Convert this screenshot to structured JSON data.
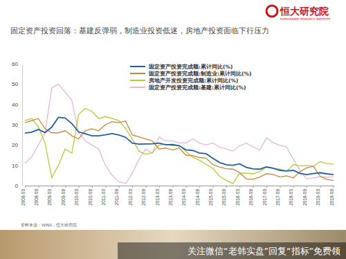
{
  "chart_data": {
    "type": "line",
    "title": "固定资产投资回落：基建反弹弱，制造业投资低迷，房地产投资面临下行压力",
    "brand": "恒大研究院",
    "brand_sub": "EVERGRANDE RESEARCH INSTITUTE",
    "source": "资料来源：WIND，恒大研究院",
    "watermark": "关注微信“老韩实盘”回复“指标”免费领",
    "categories": [
      "2008-03",
      null,
      "2008-09",
      null,
      "2009-03",
      null,
      "2009-09",
      null,
      "2010-03",
      null,
      "2010-09",
      null,
      "2011-03",
      null,
      "2011-09",
      null,
      "2012-03",
      null,
      "2012-09",
      null,
      "2013-03",
      null,
      "2013-09",
      null,
      "2014-03",
      null,
      "2014-09",
      null,
      "2015-03",
      null,
      "2015-09",
      null,
      "2016-03",
      null,
      "2016-09",
      null,
      "2017-03",
      null,
      "2017-09",
      null,
      "2018-03",
      null,
      "2018-09",
      null,
      "2019-03",
      null,
      "2019-09"
    ],
    "series": [
      {
        "name": "固定资产投资完成额:累计同比(%)",
        "color": "#1f5fa6",
        "values": [
          25.9,
          26.3,
          27.6,
          26.1,
          28.8,
          33.6,
          33.3,
          30.5,
          26.4,
          25.5,
          24.5,
          24.5,
          25.0,
          25.6,
          24.9,
          23.8,
          20.9,
          20.4,
          20.5,
          20.6,
          20.9,
          20.1,
          20.2,
          19.6,
          17.6,
          17.3,
          16.1,
          15.7,
          13.5,
          11.4,
          10.3,
          10.0,
          10.7,
          9.0,
          8.2,
          8.1,
          9.2,
          8.6,
          7.5,
          7.2,
          7.5,
          6.0,
          5.4,
          5.9,
          6.3,
          5.8,
          5.4
        ]
      },
      {
        "name": "固定资产投资完成额:制造业:累计同比(%)",
        "color": "#c8863a",
        "values": [
          31,
          32,
          33,
          28,
          26,
          26,
          27,
          24.5,
          23,
          27,
          28,
          27,
          30,
          31.5,
          31,
          31.8,
          25,
          24,
          23,
          22,
          18,
          18.5,
          17.5,
          18.5,
          15,
          14.8,
          13.8,
          13.5,
          10.4,
          9.2,
          8.3,
          8.1,
          6.4,
          3.3,
          3.1,
          4.2,
          5.8,
          5.5,
          4.2,
          4.8,
          3.8,
          6.8,
          8.7,
          9.5,
          4.6,
          3.0,
          2.5
        ]
      },
      {
        "name": "房地产开发投资完成额:累计同比(%)",
        "color": "#b5c934",
        "values": [
          32,
          33,
          29,
          21,
          4,
          10,
          18,
          16,
          35,
          38,
          36.5,
          33,
          34,
          33,
          32,
          28,
          23,
          17,
          15.4,
          16.2,
          20,
          20.3,
          19.7,
          19.8,
          16.8,
          14,
          12.5,
          10.5,
          8.5,
          4.6,
          2.6,
          1.0,
          6.2,
          6.1,
          5.8,
          6.9,
          9.1,
          8.5,
          8.1,
          7.0,
          10.4,
          9.7,
          9.9,
          9.5,
          11.8,
          10.9,
          10.5
        ]
      },
      {
        "name": "固定资产投资完成额:基建:累计同比(%)",
        "color": "#e8b6d4",
        "values": [
          11,
          14,
          20,
          26,
          48,
          50,
          46,
          42,
          26,
          22,
          20,
          18,
          10,
          5,
          2,
          1,
          6,
          13,
          18,
          16,
          24,
          22,
          22,
          21,
          21,
          23,
          21,
          20,
          21,
          19,
          18,
          17,
          19.6,
          20.9,
          19.1,
          17.4,
          23.5,
          21.1,
          19.8,
          19,
          13,
          7.3,
          3.3,
          3.8,
          4.4,
          4.1,
          4.5
        ]
      }
    ],
    "ylim": [
      0,
      60
    ],
    "yticks": [
      0,
      10,
      20,
      30,
      40,
      50,
      60
    ],
    "grid": false,
    "legend": "top-right"
  }
}
